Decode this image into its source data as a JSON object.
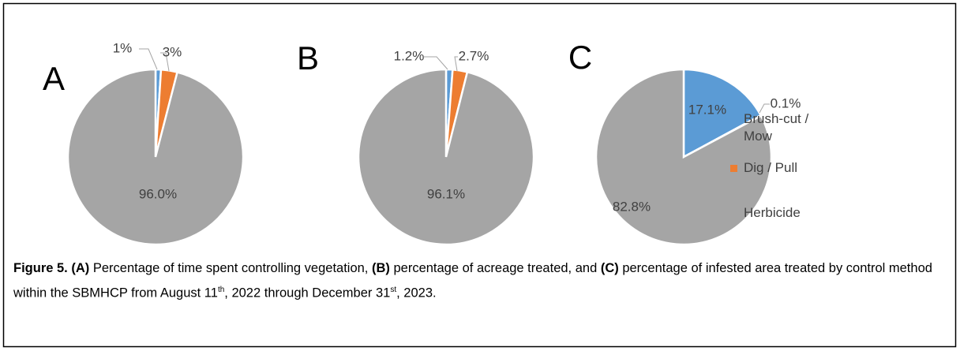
{
  "chart_data": [
    {
      "type": "pie",
      "title": "A",
      "categories": [
        "Brush-cut / Mow",
        "Dig / Pull",
        "Herbicide"
      ],
      "colors": [
        "#5b9bd5",
        "#ed7d31",
        "#a5a5a5"
      ],
      "values": [
        1,
        3,
        96.0
      ],
      "value_labels": [
        "1%",
        "3%",
        "96.0%"
      ]
    },
    {
      "type": "pie",
      "title": "B",
      "categories": [
        "Brush-cut / Mow",
        "Dig / Pull",
        "Herbicide"
      ],
      "colors": [
        "#5b9bd5",
        "#ed7d31",
        "#a5a5a5"
      ],
      "values": [
        1.2,
        2.7,
        96.1
      ],
      "value_labels": [
        "1.2%",
        "2.7%",
        "96.1%"
      ]
    },
    {
      "type": "pie",
      "title": "C",
      "categories": [
        "Brush-cut / Mow",
        "Dig / Pull",
        "Herbicide"
      ],
      "colors": [
        "#5b9bd5",
        "#ed7d31",
        "#a5a5a5"
      ],
      "values": [
        17.1,
        0.1,
        82.8
      ],
      "value_labels": [
        "17.1%",
        "0.1%",
        "82.8%"
      ]
    }
  ],
  "caption": [
    {
      "text": "Figure 5.",
      "bold": true
    },
    {
      "text": " "
    },
    {
      "text": "(A)",
      "bold": true
    },
    {
      "text": " Percentage of time spent controlling vegetation, "
    },
    {
      "text": "(B)",
      "bold": true
    },
    {
      "text": " percentage of acreage treated, and "
    },
    {
      "text": "(C)",
      "bold": true
    },
    {
      "text": " percentage of infested area treated by control method within the SBMHCP from August 11"
    },
    {
      "text": "th",
      "sup": true
    },
    {
      "text": ", 2022 through December 31"
    },
    {
      "text": "st",
      "sup": true
    },
    {
      "text": ", 2023."
    }
  ]
}
